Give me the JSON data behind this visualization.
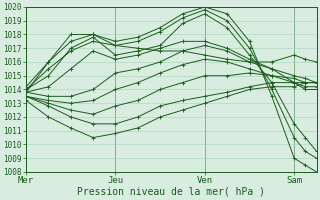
{
  "xlabel": "Pression niveau de la mer( hPa )",
  "bg_color": "#d8ede0",
  "grid_color": "#aacfba",
  "line_color": "#1a5c1a",
  "ylim": [
    1008,
    1020
  ],
  "yticks": [
    1008,
    1009,
    1010,
    1011,
    1012,
    1013,
    1014,
    1015,
    1016,
    1017,
    1018,
    1019,
    1020
  ],
  "day_ticks": [
    0,
    1,
    2,
    3
  ],
  "day_labels": [
    "Mer",
    "Jeu",
    "Ven",
    "Sam"
  ],
  "total_hours": 78,
  "lines": [
    {
      "x": [
        0,
        6,
        12,
        18,
        24,
        30,
        36,
        42,
        48,
        54,
        60,
        66,
        72,
        75,
        78
      ],
      "y": [
        1014.2,
        1016.0,
        1017.5,
        1018.0,
        1017.5,
        1017.8,
        1018.5,
        1019.5,
        1020.0,
        1019.5,
        1017.5,
        1013.5,
        1009.0,
        1008.5,
        1008.0
      ]
    },
    {
      "x": [
        0,
        6,
        12,
        18,
        24,
        30,
        36,
        42,
        48,
        54,
        60,
        66,
        72,
        75,
        78
      ],
      "y": [
        1014.0,
        1015.5,
        1016.8,
        1017.5,
        1017.2,
        1017.5,
        1018.2,
        1019.2,
        1019.8,
        1019.0,
        1017.0,
        1014.0,
        1010.5,
        1009.5,
        1009.0
      ]
    },
    {
      "x": [
        0,
        6,
        12,
        18,
        24,
        30,
        36,
        42,
        48,
        54,
        60,
        66,
        72,
        75,
        78
      ],
      "y": [
        1014.0,
        1015.0,
        1017.0,
        1017.8,
        1016.5,
        1016.8,
        1017.2,
        1018.8,
        1019.5,
        1018.5,
        1016.5,
        1014.5,
        1011.5,
        1010.5,
        1009.5
      ]
    },
    {
      "x": [
        0,
        6,
        12,
        18,
        24,
        30,
        36,
        42,
        48,
        54,
        60,
        66,
        72,
        75,
        78
      ],
      "y": [
        1013.8,
        1014.2,
        1015.5,
        1016.8,
        1016.2,
        1016.5,
        1017.0,
        1017.5,
        1017.5,
        1017.0,
        1016.2,
        1015.5,
        1014.5,
        1014.0,
        1014.0
      ]
    },
    {
      "x": [
        0,
        6,
        12,
        18,
        24,
        30,
        36,
        42,
        48,
        54,
        60,
        66,
        72,
        75,
        78
      ],
      "y": [
        1013.8,
        1016.0,
        1018.0,
        1018.0,
        1017.2,
        1017.0,
        1016.8,
        1016.8,
        1016.5,
        1016.2,
        1016.0,
        1016.0,
        1016.5,
        1016.2,
        1016.0
      ]
    },
    {
      "x": [
        0,
        6,
        12,
        18,
        24,
        30,
        36,
        42,
        48,
        54,
        60,
        66,
        72,
        75,
        78
      ],
      "y": [
        1013.8,
        1013.5,
        1013.5,
        1014.0,
        1015.2,
        1015.5,
        1016.0,
        1016.8,
        1017.2,
        1016.8,
        1016.0,
        1015.5,
        1015.0,
        1014.8,
        1014.5
      ]
    },
    {
      "x": [
        0,
        6,
        12,
        18,
        24,
        30,
        36,
        42,
        48,
        54,
        60,
        66,
        72,
        75,
        78
      ],
      "y": [
        1013.5,
        1013.2,
        1013.0,
        1013.2,
        1014.0,
        1014.5,
        1015.2,
        1015.8,
        1016.2,
        1016.0,
        1015.5,
        1015.0,
        1014.5,
        1014.2,
        1014.2
      ]
    },
    {
      "x": [
        0,
        6,
        12,
        18,
        24,
        30,
        36,
        42,
        48,
        54,
        60,
        66,
        72,
        75,
        78
      ],
      "y": [
        1013.5,
        1013.0,
        1012.5,
        1012.2,
        1012.8,
        1013.2,
        1014.0,
        1014.5,
        1015.0,
        1015.0,
        1015.2,
        1015.0,
        1014.8,
        1014.5,
        1014.5
      ]
    },
    {
      "x": [
        0,
        6,
        12,
        18,
        24,
        30,
        36,
        42,
        48,
        54,
        60,
        66,
        72,
        75,
        78
      ],
      "y": [
        1013.5,
        1012.8,
        1012.0,
        1011.5,
        1011.5,
        1012.0,
        1012.8,
        1013.2,
        1013.5,
        1013.8,
        1014.2,
        1014.5,
        1014.5,
        1014.5,
        1014.5
      ]
    },
    {
      "x": [
        0,
        6,
        12,
        18,
        24,
        30,
        36,
        42,
        48,
        54,
        60,
        66,
        72,
        75,
        78
      ],
      "y": [
        1013.2,
        1012.0,
        1011.2,
        1010.5,
        1010.8,
        1011.2,
        1012.0,
        1012.5,
        1013.0,
        1013.5,
        1014.0,
        1014.2,
        1014.2,
        1014.5,
        1014.5
      ]
    }
  ],
  "marker": "+",
  "marker_size": 2.5,
  "linewidth": 0.7,
  "ylabel_fontsize": 5.5,
  "xlabel_fontsize": 7,
  "xtick_fontsize": 6.5,
  "figsize": [
    3.2,
    2.0
  ],
  "dpi": 100
}
